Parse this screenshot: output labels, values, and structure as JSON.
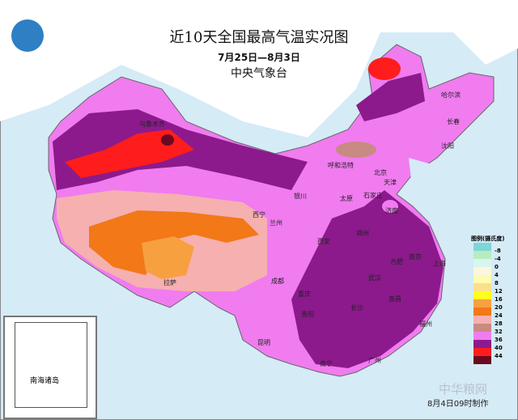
{
  "title": "近10天全国最高气温实况图",
  "date_range": "7月25日—8月3日",
  "issuer": "中央气象台",
  "legend": {
    "title": "图例(摄氏度)",
    "items": [
      {
        "value": "-8",
        "color": "#7fd6d6"
      },
      {
        "value": "-4",
        "color": "#b8ecc0"
      },
      {
        "value": "0",
        "color": "#d8f6f0"
      },
      {
        "value": "4",
        "color": "#fbf6dc"
      },
      {
        "value": "8",
        "color": "#fffbb0"
      },
      {
        "value": "12",
        "color": "#fbe08a"
      },
      {
        "value": "16",
        "color": "#ffff20"
      },
      {
        "value": "20",
        "color": "#f7a040"
      },
      {
        "value": "24",
        "color": "#f27818"
      },
      {
        "value": "28",
        "color": "#f6b0b0"
      },
      {
        "value": "32",
        "color": "#c88a82"
      },
      {
        "value": "36",
        "color": "#f07cf0"
      },
      {
        "value": "40",
        "color": "#8c1a8c"
      },
      {
        "value": "44",
        "color": "#ff1c1c"
      },
      {
        "value": "",
        "color": "#6a0a20"
      }
    ]
  },
  "cities": [
    "乌鲁木齐",
    "呼和浩特",
    "哈尔滨",
    "长春",
    "沈阳",
    "北京",
    "天津",
    "石家庄",
    "太原",
    "济南",
    "银川",
    "兰州",
    "西宁",
    "西安",
    "郑州",
    "南京",
    "合肥",
    "武汉",
    "成都",
    "重庆",
    "贵阳",
    "昆明",
    "拉萨",
    "长沙",
    "南昌",
    "福州",
    "广州",
    "南宁",
    "上海"
  ],
  "inset_label": "南海诸岛",
  "footer": "8月4日09时制作",
  "watermark": "中华粮网"
}
